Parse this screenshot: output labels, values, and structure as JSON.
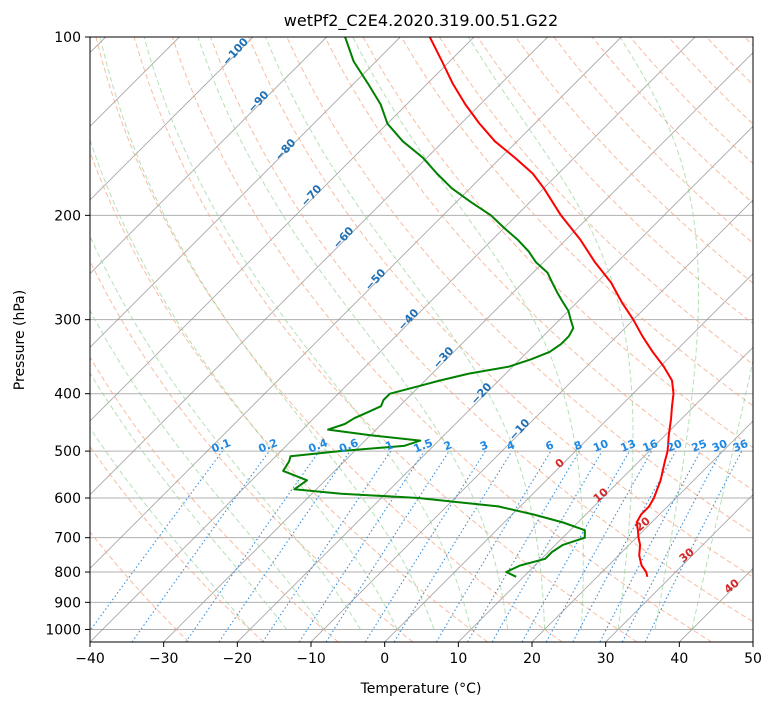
{
  "chart_data": {
    "type": "line",
    "title": "wetPf2_C2E4.2020.319.00.51.G22",
    "xlabel": "Temperature (°C)",
    "ylabel": "Pressure (hPa)",
    "xlim": [
      -40,
      50
    ],
    "ylim": [
      1050,
      100
    ],
    "y_scale": "log",
    "skew_t": true,
    "grid": true,
    "x_ticks": [
      "−40",
      "−30",
      "−20",
      "−10",
      "0",
      "10",
      "20",
      "30",
      "40",
      "50"
    ],
    "y_ticks": [
      "100",
      "200",
      "300",
      "400",
      "500",
      "600",
      "700",
      "800",
      "900",
      "1000"
    ],
    "series": [
      {
        "color": "#ff0000",
        "pressure": [
          815,
          800,
          780,
          750,
          720,
          700,
          680,
          660,
          640,
          620,
          600,
          560,
          520,
          500,
          470,
          440,
          420,
          400,
          380,
          360,
          340,
          320,
          300,
          280,
          260,
          240,
          220,
          200,
          180,
          170,
          160,
          150,
          140,
          130,
          120,
          110,
          100
        ],
        "temperature": [
          26.8,
          26.0,
          24.5,
          22.8,
          21.5,
          20.3,
          19.2,
          18.0,
          17.5,
          17.5,
          17.0,
          15.5,
          13.5,
          12.5,
          10.5,
          8.5,
          7.0,
          5.5,
          3.5,
          0.5,
          -3.0,
          -6.5,
          -10.0,
          -14.0,
          -18.0,
          -23.0,
          -28.0,
          -34.0,
          -40.0,
          -43.5,
          -48.0,
          -53.0,
          -57.5,
          -62.0,
          -66.5,
          -71.0,
          -76.0
        ]
      },
      {
        "color": "#008000",
        "pressure": [
          815,
          800,
          780,
          760,
          740,
          720,
          700,
          680,
          660,
          640,
          620,
          600,
          590,
          580,
          560,
          540,
          520,
          510,
          500,
          490,
          480,
          470,
          460,
          450,
          440,
          430,
          420,
          410,
          400,
          390,
          380,
          370,
          360,
          350,
          340,
          330,
          320,
          310,
          300,
          290,
          280,
          270,
          260,
          250,
          240,
          230,
          220,
          210,
          200,
          190,
          180,
          170,
          160,
          150,
          140,
          130,
          120,
          110,
          100
        ],
        "temperature": [
          9.0,
          7.0,
          8.0,
          10.5,
          10.5,
          11.0,
          13.0,
          12.0,
          8.0,
          3.0,
          -3.0,
          -15.0,
          -26.0,
          -33.0,
          -32.5,
          -37.0,
          -37.5,
          -38.0,
          -32.0,
          -24.0,
          -22.5,
          -30.0,
          -36.5,
          -35.0,
          -34.5,
          -33.5,
          -32.5,
          -33.0,
          -33.0,
          -30.5,
          -28.0,
          -25.0,
          -20.5,
          -18.5,
          -17.0,
          -16.5,
          -16.5,
          -17.0,
          -18.5,
          -20.0,
          -22.0,
          -24.0,
          -26.0,
          -28.0,
          -31.0,
          -33.5,
          -36.5,
          -40.0,
          -43.5,
          -48.0,
          -52.5,
          -56.5,
          -60.5,
          -65.5,
          -70.0,
          -73.5,
          -78.0,
          -83.0,
          -87.5
        ]
      }
    ],
    "dry_adiabat_labels": [
      "0",
      "10",
      "20",
      "30",
      "40"
    ],
    "moist_adiabat_labels": [
      "−100",
      "−90",
      "−80",
      "−70",
      "−60",
      "−50",
      "−40",
      "−30",
      "−20",
      "−10"
    ],
    "mixing_ratio_labels": [
      "0.1",
      "0.2",
      "0.4",
      "0.6",
      "1",
      "1.5",
      "2",
      "3",
      "4",
      "6",
      "8",
      "10",
      "13",
      "16",
      "20",
      "25",
      "30",
      "36"
    ]
  }
}
